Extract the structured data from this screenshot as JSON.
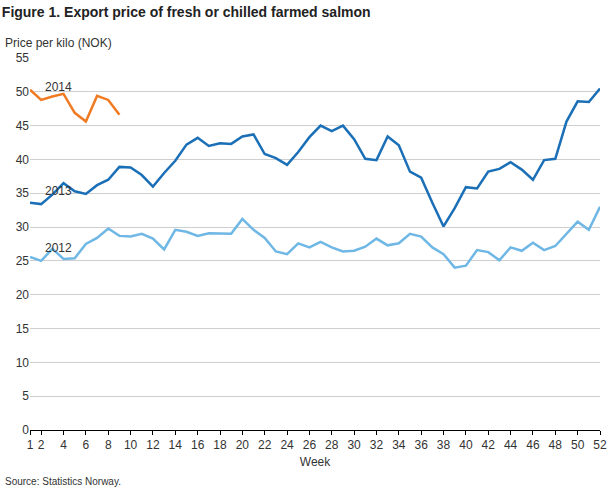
{
  "chart_data": {
    "type": "line",
    "title": "Figure 1. Export price of fresh or chilled farmed salmon",
    "ylabel": "Price per kilo (NOK)",
    "xlabel": "Week",
    "source": "Source: Statistics Norway.",
    "x": [
      1,
      2,
      3,
      4,
      5,
      6,
      7,
      8,
      9,
      10,
      11,
      12,
      13,
      14,
      15,
      16,
      17,
      18,
      19,
      20,
      21,
      22,
      23,
      24,
      25,
      26,
      27,
      28,
      29,
      30,
      31,
      32,
      33,
      34,
      35,
      36,
      37,
      38,
      39,
      40,
      41,
      42,
      43,
      44,
      45,
      46,
      47,
      48,
      49,
      50,
      51,
      52
    ],
    "series": [
      {
        "name": "2014",
        "color": "#f07b22",
        "values": [
          50.3,
          48.8,
          49.3,
          49.7,
          46.9,
          45.6,
          49.4,
          48.8,
          46.6,
          null,
          null,
          null,
          null,
          null,
          null,
          null,
          null,
          null,
          null,
          null,
          null,
          null,
          null,
          null,
          null,
          null,
          null,
          null,
          null,
          null,
          null,
          null,
          null,
          null,
          null,
          null,
          null,
          null,
          null,
          null,
          null,
          null,
          null,
          null,
          null,
          null,
          null,
          null,
          null,
          null,
          null,
          null
        ]
      },
      {
        "name": "2013",
        "color": "#1a6fb7",
        "values": [
          33.6,
          33.4,
          34.8,
          36.5,
          35.3,
          34.9,
          36.2,
          37.0,
          38.9,
          38.8,
          37.7,
          36.0,
          38.0,
          39.8,
          42.2,
          43.2,
          42.0,
          42.4,
          42.3,
          43.4,
          43.7,
          40.8,
          40.2,
          39.2,
          41.1,
          43.3,
          45.0,
          44.2,
          45.0,
          43.0,
          40.1,
          39.9,
          43.4,
          42.1,
          38.2,
          37.3,
          33.6,
          30.1,
          32.8,
          35.9,
          35.7,
          38.2,
          38.6,
          39.6,
          38.5,
          37.0,
          39.9,
          40.1,
          45.6,
          48.6,
          48.5,
          50.5
        ]
      },
      {
        "name": "2012",
        "color": "#6fb7e5",
        "values": [
          25.6,
          25.0,
          26.8,
          25.3,
          25.4,
          27.5,
          28.4,
          29.8,
          28.7,
          28.6,
          29.0,
          28.3,
          26.7,
          29.6,
          29.3,
          28.7,
          29.1,
          29.1,
          29.0,
          31.2,
          29.6,
          28.4,
          26.4,
          26.0,
          27.6,
          27.0,
          27.8,
          27.0,
          26.4,
          26.5,
          27.1,
          28.3,
          27.3,
          27.6,
          29.0,
          28.6,
          27.0,
          26.0,
          24.0,
          24.3,
          26.6,
          26.3,
          25.1,
          27.0,
          26.5,
          27.7,
          26.6,
          27.2,
          29.0,
          30.8,
          29.6,
          33.0
        ]
      }
    ],
    "xlim": [
      1,
      52
    ],
    "xticks": [
      1,
      2,
      4,
      6,
      8,
      10,
      12,
      14,
      16,
      18,
      20,
      22,
      24,
      26,
      28,
      30,
      32,
      34,
      36,
      38,
      40,
      42,
      44,
      46,
      48,
      50,
      52
    ],
    "ylim": [
      0,
      55
    ],
    "yticks": [
      0,
      5,
      10,
      15,
      20,
      25,
      30,
      35,
      40,
      45,
      50,
      55
    ],
    "grid": true
  }
}
